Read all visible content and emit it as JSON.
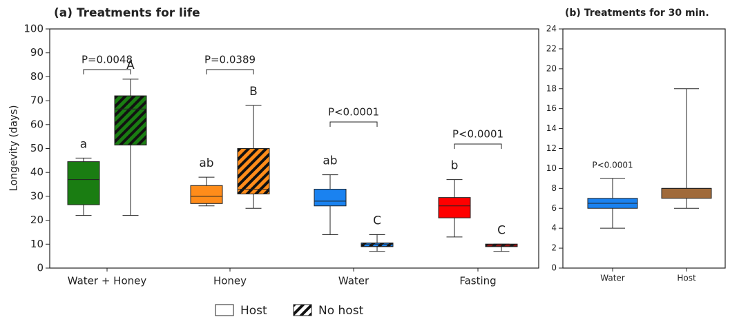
{
  "chart_data": [
    {
      "type": "box",
      "title": "(a) Treatments for life",
      "y_label": "Longevity (days)",
      "categories": [
        "Water + Honey",
        "Honey",
        "Water",
        "Fasting"
      ],
      "colors": [
        "#1a7d12",
        "#ff8c1a",
        "#1a82f0",
        "#ff0000"
      ],
      "series": [
        {
          "name": "Host",
          "hatch": false,
          "min": [
            22,
            26,
            14,
            13
          ],
          "q1": [
            26.5,
            27,
            26,
            21
          ],
          "median": [
            37,
            30,
            28,
            26
          ],
          "q3": [
            44.5,
            34.5,
            33,
            29.5
          ],
          "max": [
            46,
            38,
            39,
            37
          ],
          "labels": [
            "a",
            "ab",
            "ab",
            "b"
          ]
        },
        {
          "name": "No host",
          "hatch": true,
          "min": [
            22,
            25,
            7,
            7
          ],
          "q1": [
            51.5,
            31,
            9,
            9
          ],
          "median": [
            66.5,
            33,
            10,
            9.5
          ],
          "q3": [
            72,
            50,
            10.5,
            10
          ],
          "max": [
            79,
            68,
            14,
            10
          ],
          "labels": [
            "A",
            "B",
            "C",
            "C"
          ]
        }
      ],
      "comparisons": [
        "P=0.0048",
        "P=0.0389",
        "P<0.0001",
        "P<0.0001"
      ],
      "ylim": [
        0,
        100
      ],
      "yticks": [
        0,
        10,
        20,
        30,
        40,
        50,
        60,
        70,
        80,
        90,
        100
      ]
    },
    {
      "type": "box",
      "title": "(b) Treatments for 30 min.",
      "categories": [
        "Water",
        "Host"
      ],
      "colors": [
        "#1a82f0",
        "#a06a3a"
      ],
      "series": [
        {
          "min": [
            4,
            6
          ],
          "q1": [
            6,
            7
          ],
          "median": [
            6.5,
            8
          ],
          "q3": [
            7,
            8
          ],
          "max": [
            9,
            18
          ]
        }
      ],
      "annotations": [
        "P<0.0001"
      ],
      "ylim": [
        0,
        24
      ],
      "yticks": [
        0,
        2,
        4,
        6,
        8,
        10,
        12,
        14,
        16,
        18,
        20,
        22,
        24
      ]
    }
  ]
}
